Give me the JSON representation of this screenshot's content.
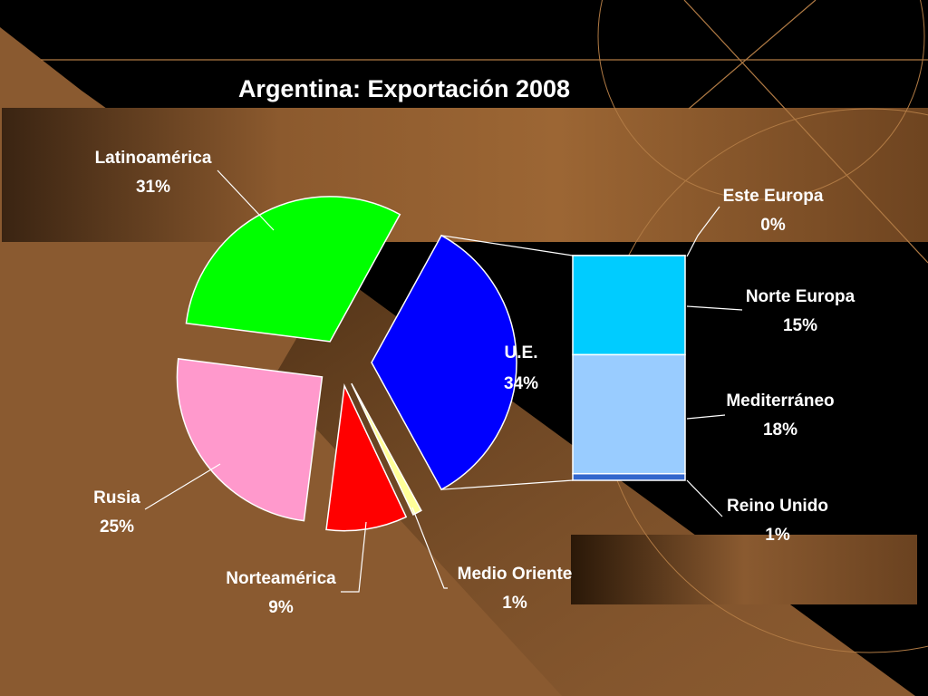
{
  "colors": {
    "background": "#000000",
    "panel": "#8a5a30",
    "latinoamerica": "#00ff00",
    "ue": "#0000ff",
    "rusia": "#ff99cc",
    "norteamerica": "#ff0000",
    "medio_oriente": "#ffff99",
    "este_europa": "#99ccff",
    "norte_europa": "#00ccff",
    "mediterraneo": "#99ccff",
    "reino_unido": "#3366cc"
  },
  "chart_data": {
    "type": "pie",
    "title": "Argentina:  Exportación 2008",
    "slices": [
      {
        "name": "U.E.",
        "value": 34,
        "label": "34%"
      },
      {
        "name": "Medio Oriente",
        "value": 1,
        "label": "1%"
      },
      {
        "name": "Norteamérica",
        "value": 9,
        "label": "9%"
      },
      {
        "name": "Rusia",
        "value": 25,
        "label": "25%"
      },
      {
        "name": "Latinoamérica",
        "value": 31,
        "label": "31%"
      }
    ],
    "breakdown": {
      "of": "U.E.",
      "type": "stacked-bar",
      "items": [
        {
          "name": "Este Europa",
          "value": 0,
          "label": "0%"
        },
        {
          "name": "Norte Europa",
          "value": 15,
          "label": "15%"
        },
        {
          "name": "Mediterráneo",
          "value": 18,
          "label": "18%"
        },
        {
          "name": "Reino Unido",
          "value": 1,
          "label": "1%"
        }
      ]
    }
  }
}
